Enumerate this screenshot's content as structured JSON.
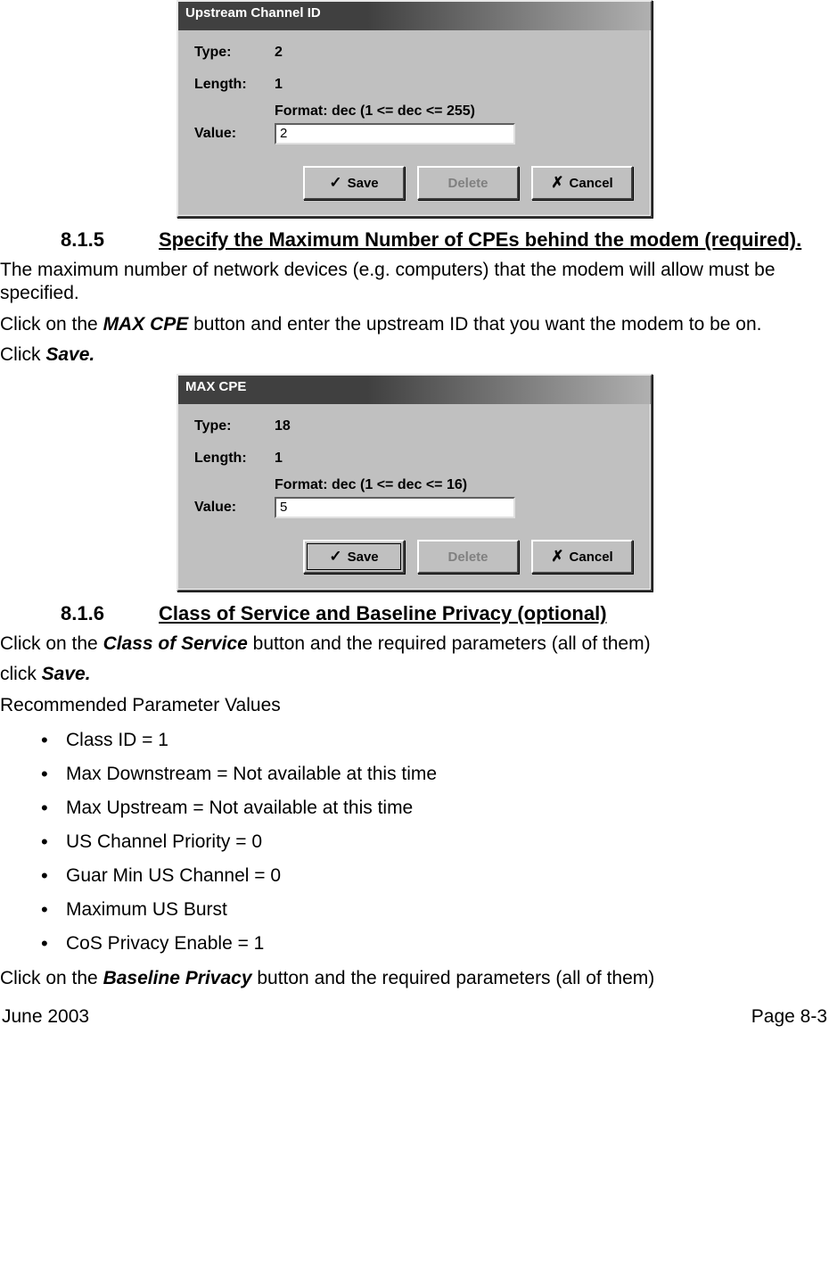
{
  "dialog1": {
    "title": "Upstream Channel ID",
    "type_label": "Type:",
    "type_value": "2",
    "length_label": "Length:",
    "length_value": "1",
    "format_label": "Format: dec  (1 <= dec <= 255)",
    "value_label": "Value:",
    "value_input": "2",
    "save_label": "Save",
    "delete_label": "Delete",
    "cancel_label": "Cancel"
  },
  "section815": {
    "number": "8.1.5",
    "title": "Specify the Maximum Number of CPEs behind the modem (required).",
    "para1a": "The maximum number of network devices (e.g. computers) that the modem will allow must be specified.",
    "para2a": "Click on the ",
    "para2b": "MAX CPE",
    "para2c": " button and enter the upstream ID that you want the modem to be on.",
    "para3a": "Click ",
    "para3b": "Save."
  },
  "dialog2": {
    "title": "MAX CPE",
    "type_label": "Type:",
    "type_value": "18",
    "length_label": "Length:",
    "length_value": "1",
    "format_label": "Format: dec  (1 <= dec <= 16)",
    "value_label": "Value:",
    "value_input": "5",
    "save_label": "Save",
    "delete_label": "Delete",
    "cancel_label": "Cancel"
  },
  "section816": {
    "number": "8.1.6",
    "title": "Class of Service and Baseline Privacy (optional)",
    "para1a": "Click on the ",
    "para1b": "Class of Service",
    "para1c": " button and the required parameters (all of them)",
    "para2a": "click ",
    "para2b": "Save.",
    "para3": "Recommended Parameter Values",
    "bullets": [
      "Class ID = 1",
      "Max Downstream = Not available at this time",
      "Max Upstream = Not available at this time",
      "US Channel Priority = 0",
      "Guar Min US Channel = 0",
      "Maximum US Burst",
      "CoS Privacy Enable = 1"
    ],
    "para4a": "Click on the ",
    "para4b": "Baseline Privacy",
    "para4c": " button and the required parameters (all of them)"
  },
  "footer": {
    "left": "June 2003",
    "right": "Page 8-3"
  },
  "icons": {
    "check": "✓",
    "x": "✗"
  }
}
